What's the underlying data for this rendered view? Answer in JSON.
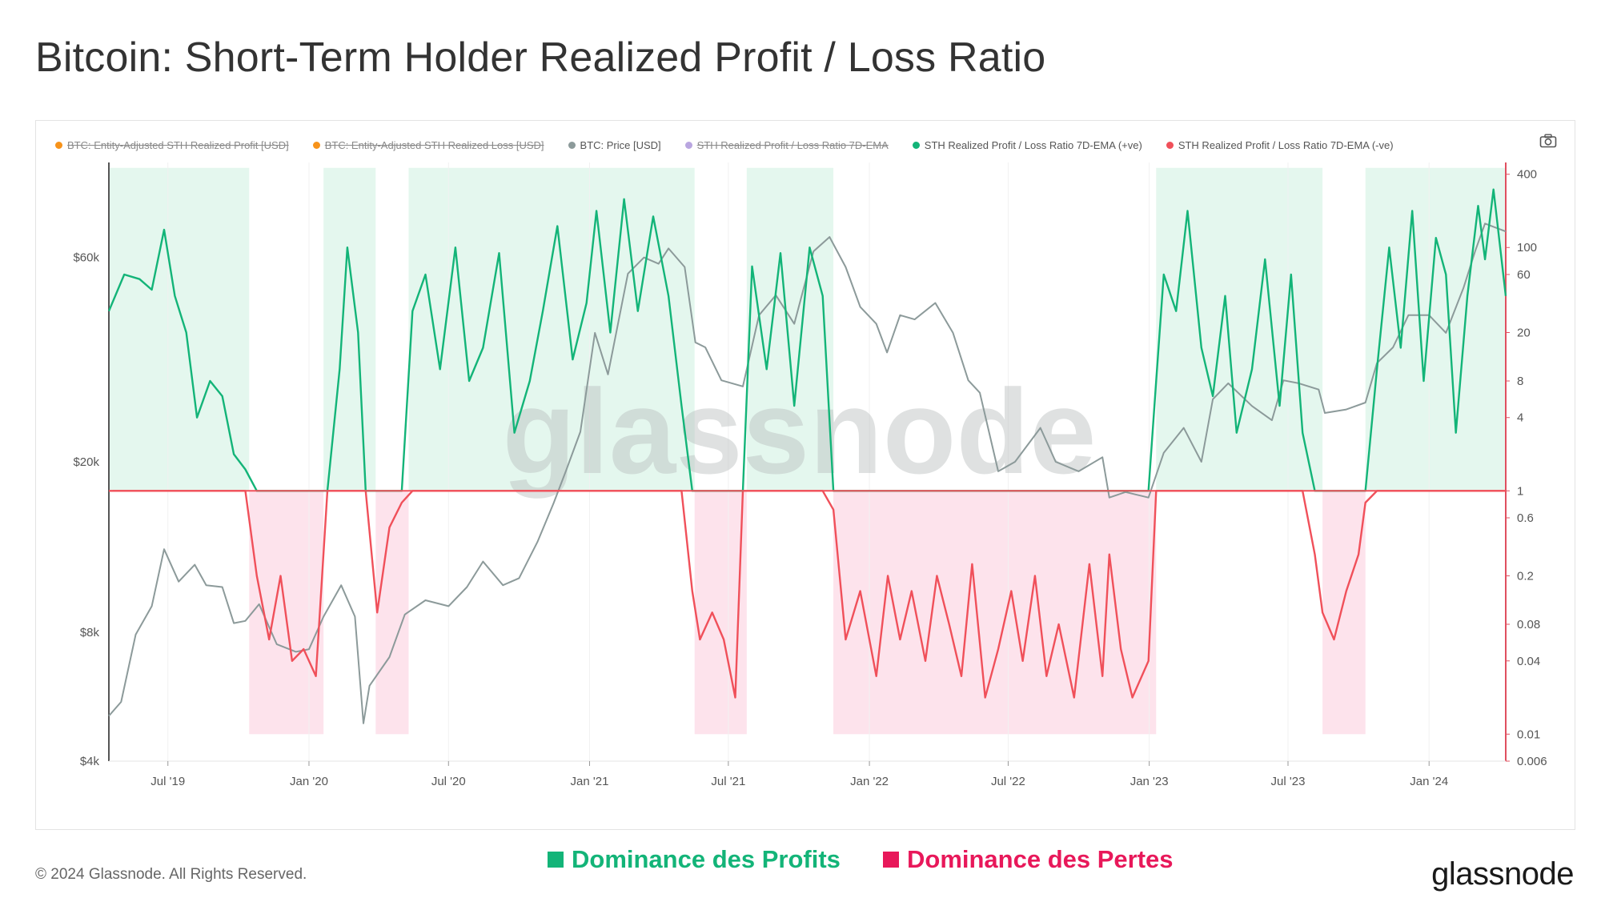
{
  "title": "Bitcoin: Short-Term Holder Realized Profit / Loss Ratio",
  "legend": [
    {
      "label": "BTC: Entity-Adjusted STH Realized Profit [USD]",
      "color": "#f7931a",
      "enabled": false
    },
    {
      "label": "BTC: Entity-Adjusted STH Realized Loss [USD]",
      "color": "#f7931a",
      "enabled": false
    },
    {
      "label": "BTC: Price [USD]",
      "color": "#8c9a9a",
      "enabled": true
    },
    {
      "label": "STH Realized Profit / Loss Ratio 7D-EMA",
      "color": "#b9a6e0",
      "enabled": false
    },
    {
      "label": "STH Realized Profit / Loss Ratio 7D-EMA (+ve)",
      "color": "#13b478",
      "enabled": true
    },
    {
      "label": "STH Realized Profit / Loss Ratio 7D-EMA (-ve)",
      "color": "#f0505a",
      "enabled": true
    }
  ],
  "watermark": "glassnode",
  "footer": {
    "copyright": "© 2024 Glassnode. All Rights Reserved.",
    "profit_label": "Dominance des Profits",
    "loss_label": "Dominance des Pertes",
    "brand": "glassnode"
  },
  "colors": {
    "profit": "#13b478",
    "loss": "#f0505a",
    "price": "#8c9a9a",
    "profit_zone": "#e4f7ee",
    "loss_zone": "#fde3ec",
    "footer_profit": "#13b478",
    "footer_loss": "#e8185a",
    "axis_right": "#e05060"
  },
  "chart_data": {
    "type": "line",
    "x_range": [
      "2019-04-15",
      "2024-04-10"
    ],
    "x_ticks": [
      {
        "date": "2019-07-01",
        "label": "Jul '19"
      },
      {
        "date": "2020-01-01",
        "label": "Jan '20"
      },
      {
        "date": "2020-07-01",
        "label": "Jul '20"
      },
      {
        "date": "2021-01-01",
        "label": "Jan '21"
      },
      {
        "date": "2021-07-01",
        "label": "Jul '21"
      },
      {
        "date": "2022-01-01",
        "label": "Jan '22"
      },
      {
        "date": "2022-07-01",
        "label": "Jul '22"
      },
      {
        "date": "2023-01-01",
        "label": "Jan '23"
      },
      {
        "date": "2023-07-01",
        "label": "Jul '23"
      },
      {
        "date": "2024-01-01",
        "label": "Jan '24"
      }
    ],
    "y_left": {
      "label": "BTC: Price [USD]",
      "scale": "log",
      "range": [
        4000,
        100000
      ],
      "ticks": [
        {
          "value": 4000,
          "label": "$4k"
        },
        {
          "value": 8000,
          "label": "$8k"
        },
        {
          "value": 20000,
          "label": "$20k"
        },
        {
          "value": 60000,
          "label": "$60k"
        }
      ]
    },
    "y_right": {
      "label": "STH Realized Profit / Loss Ratio",
      "scale": "log",
      "range": [
        0.006,
        500
      ],
      "ticks": [
        {
          "value": 400,
          "label": "400"
        },
        {
          "value": 100,
          "label": "100"
        },
        {
          "value": 60,
          "label": "60"
        },
        {
          "value": 20,
          "label": "20"
        },
        {
          "value": 8,
          "label": "8"
        },
        {
          "value": 4,
          "label": "4"
        },
        {
          "value": 1,
          "label": "1"
        },
        {
          "value": 0.6,
          "label": "0.6"
        },
        {
          "value": 0.2,
          "label": "0.2"
        },
        {
          "value": 0.08,
          "label": "0.08"
        },
        {
          "value": 0.04,
          "label": "0.04"
        },
        {
          "value": 0.01,
          "label": "0.01"
        },
        {
          "value": 0.006,
          "label": "0.006"
        }
      ]
    },
    "threshold": 1,
    "zones": [
      {
        "type": "profit",
        "start": "2019-04-15",
        "end": "2019-10-15"
      },
      {
        "type": "loss",
        "start": "2019-10-15",
        "end": "2020-01-20"
      },
      {
        "type": "profit",
        "start": "2020-01-20",
        "end": "2020-03-28"
      },
      {
        "type": "loss",
        "start": "2020-03-28",
        "end": "2020-05-10"
      },
      {
        "type": "profit",
        "start": "2020-05-10",
        "end": "2021-05-18"
      },
      {
        "type": "loss",
        "start": "2021-05-18",
        "end": "2021-07-25"
      },
      {
        "type": "profit",
        "start": "2021-07-25",
        "end": "2021-11-15"
      },
      {
        "type": "loss",
        "start": "2021-11-15",
        "end": "2023-01-10"
      },
      {
        "type": "profit",
        "start": "2023-01-10",
        "end": "2023-08-15"
      },
      {
        "type": "loss",
        "start": "2023-08-15",
        "end": "2023-10-10"
      },
      {
        "type": "profit",
        "start": "2023-10-10",
        "end": "2024-04-10"
      }
    ],
    "price_series": {
      "name": "BTC: Price [USD]",
      "x": [
        "2019-04-15",
        "2019-05-01",
        "2019-05-20",
        "2019-06-10",
        "2019-06-26",
        "2019-07-15",
        "2019-08-05",
        "2019-08-20",
        "2019-09-10",
        "2019-09-25",
        "2019-10-10",
        "2019-10-28",
        "2019-11-20",
        "2019-12-15",
        "2020-01-01",
        "2020-01-20",
        "2020-02-12",
        "2020-03-01",
        "2020-03-12",
        "2020-03-20",
        "2020-04-15",
        "2020-05-05",
        "2020-06-01",
        "2020-07-01",
        "2020-07-25",
        "2020-08-15",
        "2020-09-10",
        "2020-10-01",
        "2020-10-25",
        "2020-11-15",
        "2020-12-01",
        "2020-12-20",
        "2021-01-08",
        "2021-01-25",
        "2021-02-20",
        "2021-03-13",
        "2021-04-01",
        "2021-04-14",
        "2021-05-05",
        "2021-05-19",
        "2021-06-01",
        "2021-06-22",
        "2021-07-20",
        "2021-08-10",
        "2021-09-01",
        "2021-09-25",
        "2021-10-20",
        "2021-11-10",
        "2021-12-01",
        "2021-12-20",
        "2022-01-10",
        "2022-01-24",
        "2022-02-10",
        "2022-03-01",
        "2022-03-28",
        "2022-04-20",
        "2022-05-10",
        "2022-05-25",
        "2022-06-18",
        "2022-07-10",
        "2022-08-12",
        "2022-09-01",
        "2022-10-01",
        "2022-11-01",
        "2022-11-10",
        "2022-12-01",
        "2022-12-31",
        "2023-01-20",
        "2023-02-15",
        "2023-03-10",
        "2023-03-25",
        "2023-04-14",
        "2023-05-15",
        "2023-06-10",
        "2023-06-25",
        "2023-07-15",
        "2023-08-10",
        "2023-08-18",
        "2023-09-15",
        "2023-10-10",
        "2023-10-25",
        "2023-11-15",
        "2023-12-05",
        "2024-01-01",
        "2024-01-23",
        "2024-02-15",
        "2024-03-01",
        "2024-03-14",
        "2024-04-01",
        "2024-04-10"
      ],
      "values": [
        5100,
        5500,
        7900,
        9200,
        12500,
        10500,
        11500,
        10300,
        10200,
        8400,
        8500,
        9300,
        7500,
        7200,
        7300,
        8700,
        10300,
        8700,
        4900,
        6000,
        7000,
        8800,
        9500,
        9200,
        10200,
        11700,
        10300,
        10700,
        13000,
        16000,
        19000,
        23500,
        40000,
        32000,
        55000,
        60000,
        58000,
        63000,
        57000,
        38000,
        37000,
        31000,
        30000,
        44000,
        49000,
        42000,
        62000,
        67000,
        57000,
        46000,
        42000,
        36000,
        44000,
        43000,
        47000,
        40000,
        31000,
        29000,
        19000,
        20000,
        24000,
        20000,
        19000,
        20500,
        16500,
        17000,
        16500,
        21000,
        24000,
        20000,
        28000,
        30500,
        27000,
        25000,
        31000,
        30500,
        29500,
        26000,
        26500,
        27500,
        34000,
        37000,
        44000,
        44000,
        40000,
        51000,
        62000,
        72000,
        70000,
        69000
      ]
    },
    "ratio_series": {
      "name": "STH Realized Profit / Loss Ratio 7D-EMA",
      "x": [
        "2019-04-15",
        "2019-05-05",
        "2019-05-25",
        "2019-06-10",
        "2019-06-26",
        "2019-07-10",
        "2019-07-25",
        "2019-08-08",
        "2019-08-25",
        "2019-09-10",
        "2019-09-25",
        "2019-10-10",
        "2019-10-25",
        "2019-11-10",
        "2019-11-25",
        "2019-12-10",
        "2019-12-25",
        "2020-01-10",
        "2020-01-25",
        "2020-02-10",
        "2020-02-20",
        "2020-03-05",
        "2020-03-15",
        "2020-03-30",
        "2020-04-15",
        "2020-05-01",
        "2020-05-15",
        "2020-06-01",
        "2020-06-20",
        "2020-07-10",
        "2020-07-28",
        "2020-08-15",
        "2020-09-05",
        "2020-09-25",
        "2020-10-15",
        "2020-11-01",
        "2020-11-20",
        "2020-12-10",
        "2020-12-28",
        "2021-01-10",
        "2021-01-28",
        "2021-02-15",
        "2021-03-05",
        "2021-03-25",
        "2021-04-14",
        "2021-05-01",
        "2021-05-15",
        "2021-05-25",
        "2021-06-10",
        "2021-06-25",
        "2021-07-10",
        "2021-07-20",
        "2021-08-01",
        "2021-08-20",
        "2021-09-07",
        "2021-09-25",
        "2021-10-15",
        "2021-11-01",
        "2021-11-15",
        "2021-12-01",
        "2021-12-20",
        "2022-01-10",
        "2022-01-25",
        "2022-02-10",
        "2022-02-25",
        "2022-03-15",
        "2022-03-30",
        "2022-04-15",
        "2022-05-01",
        "2022-05-15",
        "2022-06-01",
        "2022-06-18",
        "2022-07-05",
        "2022-07-20",
        "2022-08-05",
        "2022-08-20",
        "2022-09-05",
        "2022-09-25",
        "2022-10-15",
        "2022-11-01",
        "2022-11-10",
        "2022-11-25",
        "2022-12-10",
        "2022-12-31",
        "2023-01-10",
        "2023-01-20",
        "2023-02-05",
        "2023-02-20",
        "2023-03-10",
        "2023-03-25",
        "2023-04-10",
        "2023-04-25",
        "2023-05-15",
        "2023-06-01",
        "2023-06-20",
        "2023-07-05",
        "2023-07-20",
        "2023-08-05",
        "2023-08-15",
        "2023-08-30",
        "2023-09-15",
        "2023-10-01",
        "2023-10-10",
        "2023-10-25",
        "2023-11-10",
        "2023-11-25",
        "2023-12-10",
        "2023-12-25",
        "2024-01-10",
        "2024-01-23",
        "2024-02-05",
        "2024-02-20",
        "2024-03-05",
        "2024-03-14",
        "2024-03-25",
        "2024-04-10"
      ],
      "values": [
        30,
        60,
        55,
        45,
        140,
        40,
        20,
        4,
        8,
        6,
        2,
        1.5,
        0.2,
        0.06,
        0.2,
        0.04,
        0.05,
        0.03,
        1,
        10,
        100,
        20,
        1,
        0.1,
        0.5,
        0.8,
        30,
        60,
        10,
        100,
        8,
        15,
        90,
        3,
        8,
        30,
        150,
        12,
        35,
        200,
        20,
        250,
        30,
        180,
        40,
        5,
        0.15,
        0.06,
        0.1,
        0.06,
        0.02,
        1,
        70,
        10,
        90,
        5,
        100,
        40,
        0.7,
        0.06,
        0.15,
        0.03,
        0.2,
        0.06,
        0.15,
        0.04,
        0.2,
        0.08,
        0.03,
        0.25,
        0.02,
        0.05,
        0.15,
        0.04,
        0.2,
        0.03,
        0.08,
        0.02,
        0.25,
        0.03,
        0.3,
        0.05,
        0.02,
        0.04,
        8,
        60,
        30,
        200,
        15,
        6,
        40,
        3,
        10,
        80,
        5,
        60,
        3,
        0.3,
        0.1,
        0.06,
        0.15,
        0.3,
        0.8,
        10,
        100,
        15,
        200,
        8,
        120,
        60,
        3,
        40,
        220,
        80,
        300,
        40
      ]
    }
  }
}
